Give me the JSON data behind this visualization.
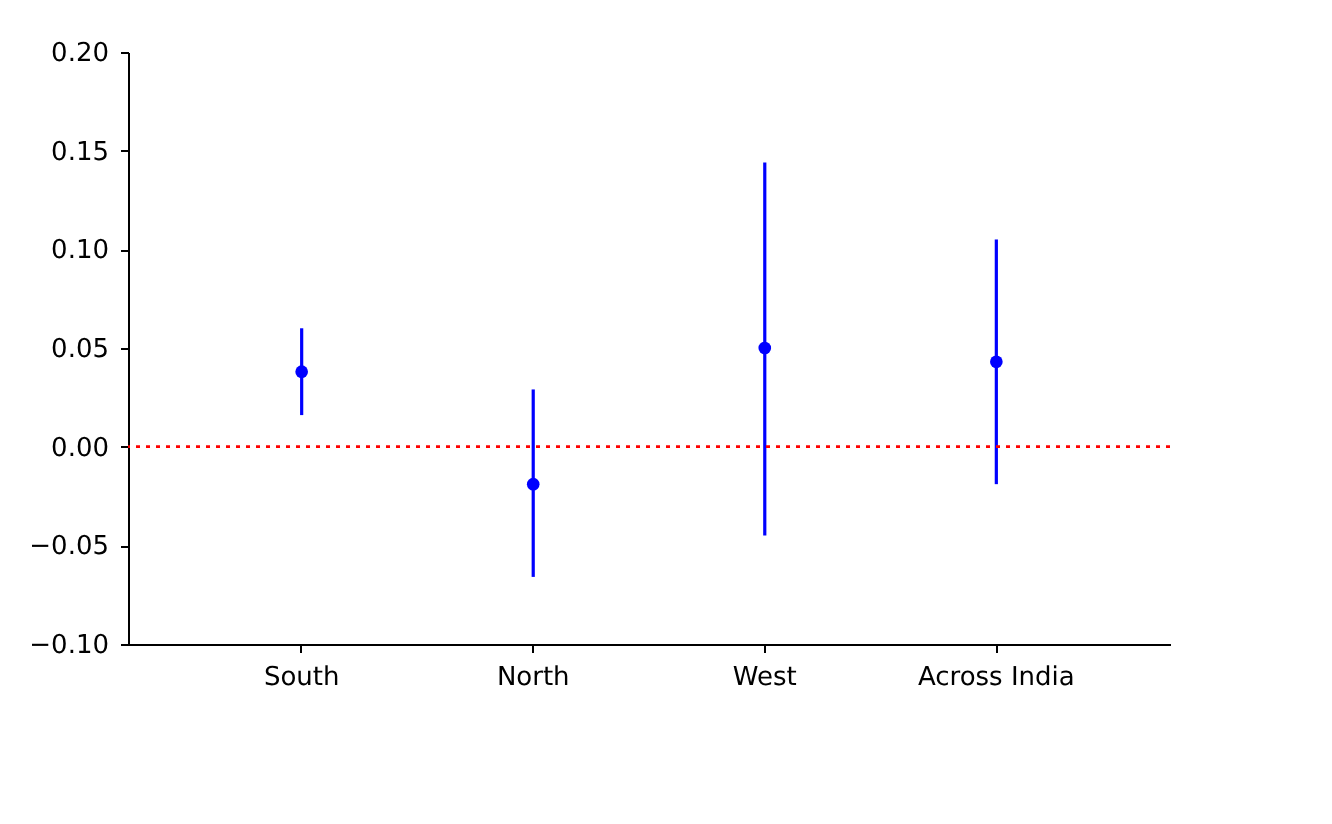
{
  "chart_data": {
    "type": "scatter",
    "categories": [
      "South",
      "North",
      "West",
      "Across India"
    ],
    "values": [
      0.038,
      -0.019,
      0.05,
      0.043
    ],
    "errors": [
      [
        0.016,
        0.06
      ],
      [
        -0.066,
        0.029
      ],
      [
        -0.045,
        0.144
      ],
      [
        -0.019,
        0.105
      ]
    ],
    "color": "#0000ff",
    "marker": "circle",
    "grid": false,
    "ylim": [
      -0.1,
      0.2
    ],
    "yticks": [
      {
        "value": -0.1,
        "label": "−0.10"
      },
      {
        "value": -0.05,
        "label": "−0.05"
      },
      {
        "value": 0,
        "label": "0.00"
      },
      {
        "value": 0.05,
        "label": "0.05"
      },
      {
        "value": 0.1,
        "label": "0.10"
      },
      {
        "value": 0.15,
        "label": "0.15"
      },
      {
        "value": 0.2,
        "label": "0.20"
      }
    ],
    "ref_lines": [
      {
        "axis": "y",
        "value": 0,
        "color": "#ff0000",
        "line_style": "dotted"
      }
    ]
  }
}
